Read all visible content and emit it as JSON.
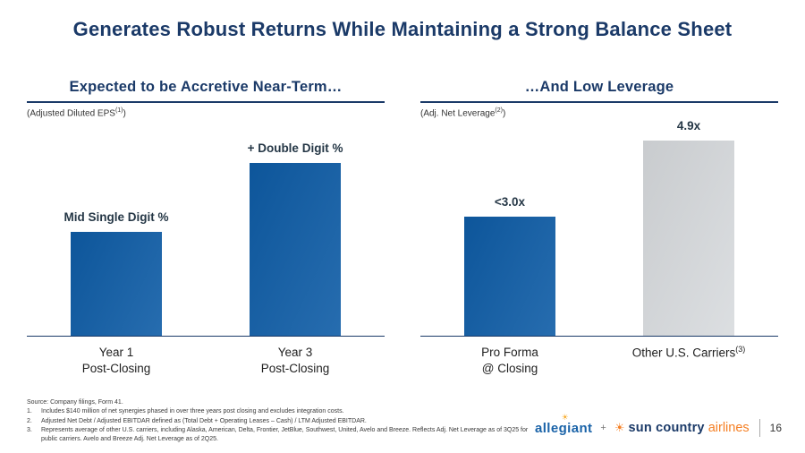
{
  "title": "Generates Robust Returns While Maintaining a Strong Balance Sheet",
  "chart_data": [
    {
      "type": "bar",
      "title": "Expected to be Accretive Near-Term…",
      "subtitle": "(Adjusted Diluted EPS",
      "subtitle_sup": "(1)",
      "subtitle_close": ")",
      "categories": [
        "Year 1 Post-Closing",
        "Year 3 Post-Closing"
      ],
      "category_lines": [
        [
          "Year 1",
          "Post-Closing"
        ],
        [
          "Year 3",
          "Post-Closing"
        ]
      ],
      "values": [
        6,
        10
      ],
      "value_labels": [
        "Mid Single Digit %",
        "+ Double Digit %"
      ],
      "colors": [
        "#0e5ca6",
        "#0e5ca6"
      ],
      "ylim": [
        0,
        12
      ],
      "xlabel": "",
      "ylabel": "",
      "legend": "none",
      "grid": false
    },
    {
      "type": "bar",
      "title": "…And Low Leverage",
      "subtitle": "(Adj. Net Leverage",
      "subtitle_sup": "(2)",
      "subtitle_close": ")",
      "categories": [
        "Pro Forma @ Closing",
        "Other U.S. Carriers(3)"
      ],
      "category_lines": [
        [
          "Pro Forma",
          "@ Closing"
        ],
        [
          "Other U.S. Carriers"
        ]
      ],
      "category_sups": [
        "",
        "(3)"
      ],
      "values": [
        3.0,
        4.9
      ],
      "value_labels": [
        "<3.0x",
        "4.9x"
      ],
      "colors": [
        "#0e5ca6",
        "#d8dbde"
      ],
      "ylim": [
        0,
        5.2
      ],
      "xlabel": "",
      "ylabel": "",
      "legend": "none",
      "grid": false
    }
  ],
  "footnotes": {
    "source": "Source: Company filings, Form 41.",
    "items": [
      {
        "num": "1.",
        "text": "Includes $140 million of net synergies phased in over three years post closing and excludes integration costs."
      },
      {
        "num": "2.",
        "text": "Adjusted Net Debt / Adjusted EBITDAR defined as (Total Debt + Operating Leases – Cash) / LTM Adjusted EBITDAR."
      },
      {
        "num": "3.",
        "text": "Represents average of other U.S. carriers, including Alaska, American, Delta, Frontier, JetBlue, Southwest, United, Avelo and Breeze. Reflects Adj. Net Leverage as of 3Q25 for public carriers. Avelo and Breeze Adj. Net Leverage as of 2Q25."
      }
    ]
  },
  "footer": {
    "allegiant_wordmark": "allegiant",
    "allegiant_sun_icon": "☀",
    "plus": "+",
    "suncountry_sun_icon": "☀",
    "suncountry_main": "sun country",
    "suncountry_sub": "airlines",
    "page_number": "16"
  },
  "colors": {
    "navy": "#1b3a68",
    "bar_blue": "#0e5ca6",
    "bar_gray": "#d8dbde",
    "orange": "#f58025"
  }
}
